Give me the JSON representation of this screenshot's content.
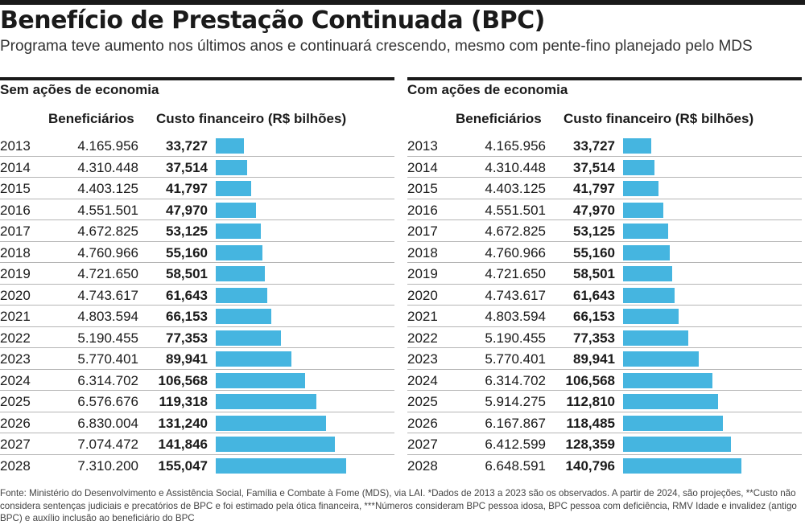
{
  "title": "Benefício de Prestação Continuada (BPC)",
  "subtitle": "Programa teve aumento nos últimos anos e continuará crescendo, mesmo com pente-fino planejado pelo MDS",
  "columns": {
    "benef": "Beneficiários",
    "custo": "Custo financeiro (R$ bilhões)"
  },
  "bar_color": "#45b5e0",
  "chart_data": [
    {
      "type": "bar",
      "title": "Sem ações de economia",
      "categories": [
        "2013",
        "2014",
        "2015",
        "2016",
        "2017",
        "2018",
        "2019",
        "2020",
        "2021",
        "2022",
        "2023",
        "2024",
        "2025",
        "2026",
        "2027",
        "2028"
      ],
      "beneficiarios": [
        "4.165.956",
        "4.310.448",
        "4.403.125",
        "4.551.501",
        "4.672.825",
        "4.760.966",
        "4.721.650",
        "4.743.617",
        "4.803.594",
        "5.190.455",
        "5.770.401",
        "6.314.702",
        "6.576.676",
        "6.830.004",
        "7.074.472",
        "7.310.200"
      ],
      "custo_labels": [
        "33,727",
        "37,514",
        "41,797",
        "47,970",
        "53,125",
        "55,160",
        "58,501",
        "61,643",
        "66,153",
        "77,353",
        "89,941",
        "106,568",
        "119,318",
        "131,240",
        "141,846",
        "155,047"
      ],
      "values": [
        33.727,
        37.514,
        41.797,
        47.97,
        53.125,
        55.16,
        58.501,
        61.643,
        66.153,
        77.353,
        89.941,
        106.568,
        119.318,
        131.24,
        141.846,
        155.047
      ],
      "xlim": [
        0,
        155.047
      ]
    },
    {
      "type": "bar",
      "title": "Com ações de economia",
      "categories": [
        "2013",
        "2014",
        "2015",
        "2016",
        "2017",
        "2018",
        "2019",
        "2020",
        "2021",
        "2022",
        "2023",
        "2024",
        "2025",
        "2026",
        "2027",
        "2028"
      ],
      "beneficiarios": [
        "4.165.956",
        "4.310.448",
        "4.403.125",
        "4.551.501",
        "4.672.825",
        "4.760.966",
        "4.721.650",
        "4.743.617",
        "4.803.594",
        "5.190.455",
        "5.770.401",
        "6.314.702",
        "5.914.275",
        "6.167.867",
        "6.412.599",
        "6.648.591"
      ],
      "custo_labels": [
        "33,727",
        "37,514",
        "41,797",
        "47,970",
        "53,125",
        "55,160",
        "58,501",
        "61,643",
        "66,153",
        "77,353",
        "89,941",
        "106,568",
        "112,810",
        "118,485",
        "128,359",
        "140,796"
      ],
      "values": [
        33.727,
        37.514,
        41.797,
        47.97,
        53.125,
        55.16,
        58.501,
        61.643,
        66.153,
        77.353,
        89.941,
        106.568,
        112.81,
        118.485,
        128.359,
        140.796
      ],
      "xlim": [
        0,
        155.047
      ]
    }
  ],
  "footnote": "Fonte: Ministério do Desenvolvimento e Assistência Social, Família e Combate à Fome (MDS), via LAI. *Dados de 2013 a 2023 são os observados. A partir de 2024, são projeções, **Custo não considera sentenças judiciais e precatórios de BPC e foi estimado pela ótica financeira, ***Números consideram BPC pessoa idosa, BPC pessoa com deficiência, RMV Idade e invalidez (antigo BPC) e auxílio inclusão ao beneficiário do BPC"
}
